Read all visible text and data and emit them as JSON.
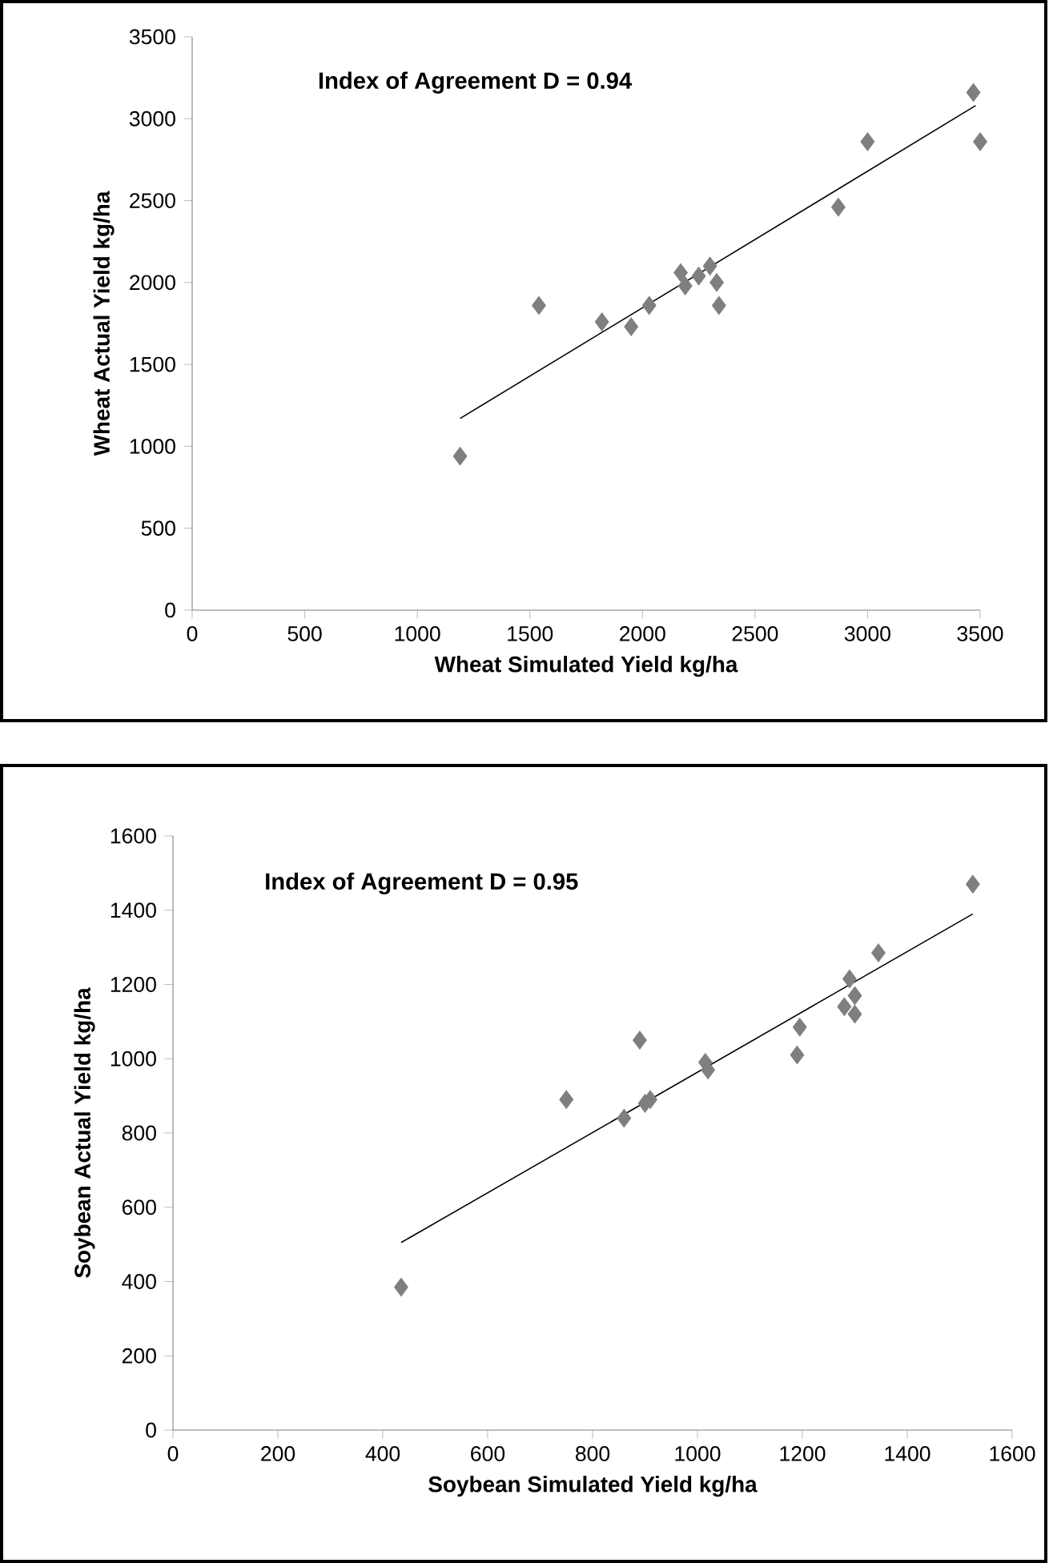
{
  "chart_data": [
    {
      "type": "scatter",
      "xlabel": "Wheat Simulated Yield kg/ha",
      "ylabel": "Wheat Actual Yield kg/ha",
      "annotations": [
        "Index of Agreement D = 0.94"
      ],
      "xlim": [
        0,
        3500
      ],
      "ylim": [
        0,
        3500
      ],
      "xticks": [
        0,
        500,
        1000,
        1500,
        2000,
        2500,
        3000,
        3500
      ],
      "yticks": [
        0,
        500,
        1000,
        1500,
        2000,
        2500,
        3000,
        3500
      ],
      "grid": false,
      "marker": "diamond",
      "series": [
        {
          "color": "#7f7f7f",
          "x": [
            1190,
            1540,
            1820,
            1950,
            2030,
            2170,
            2190,
            2250,
            2300,
            2330,
            2340,
            2870,
            3000,
            3470,
            3500
          ],
          "values": [
            940,
            1860,
            1760,
            1730,
            1860,
            2060,
            1980,
            2040,
            2100,
            2000,
            1860,
            2460,
            2860,
            3160,
            2860
          ]
        },
        {
          "type": "line",
          "marker": "none",
          "color": "#000000",
          "x": [
            1190,
            3480
          ],
          "values": [
            1170,
            3080
          ]
        }
      ]
    },
    {
      "type": "scatter",
      "xlabel": "Soybean Simulated Yield kg/ha",
      "ylabel": "Soybean Actual Yield kg/ha",
      "annotations": [
        "Index of Agreement D = 0.95"
      ],
      "xlim": [
        0,
        1600
      ],
      "ylim": [
        0,
        1600
      ],
      "xticks": [
        0,
        200,
        400,
        600,
        800,
        1000,
        1200,
        1400,
        1600
      ],
      "yticks": [
        0,
        200,
        400,
        600,
        800,
        1000,
        1200,
        1400,
        1600
      ],
      "grid": false,
      "marker": "diamond",
      "series": [
        {
          "color": "#7f7f7f",
          "x": [
            435,
            750,
            860,
            890,
            900,
            910,
            1015,
            1020,
            1190,
            1195,
            1280,
            1290,
            1300,
            1300,
            1345,
            1525
          ],
          "values": [
            385,
            890,
            840,
            1050,
            880,
            890,
            990,
            970,
            1010,
            1085,
            1140,
            1215,
            1170,
            1120,
            1285,
            1470
          ]
        },
        {
          "type": "line",
          "marker": "none",
          "color": "#000000",
          "x": [
            435,
            1525
          ],
          "values": [
            505,
            1390
          ]
        }
      ]
    }
  ]
}
